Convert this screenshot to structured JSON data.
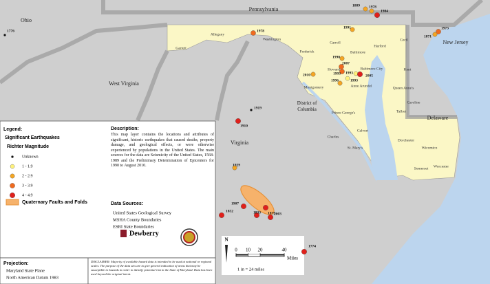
{
  "map": {
    "states": [
      "Ohio",
      "Pennsylvania",
      "West Virginia",
      "New Jersey",
      "Delaware",
      "Virginia",
      "District of Columbia"
    ],
    "counties": [
      "Garrett",
      "Allegany",
      "Washington",
      "Frederick",
      "Carroll",
      "Baltimore",
      "Harford",
      "Cecil",
      "Howard",
      "Baltimore City",
      "Kent",
      "Montgomery",
      "Anne Arundel",
      "Queen Anne's",
      "Prince George's",
      "Talbot",
      "Caroline",
      "Calvert",
      "Charles",
      "Dorchester",
      "St. Mary's",
      "Wicomico",
      "Worcester",
      "Somerset"
    ],
    "earthquakes": [
      "1776",
      "1889",
      "1978",
      "1984",
      "1978",
      "1973",
      "1871",
      "1991",
      "1990",
      "2007",
      "1993",
      "1993",
      "2005",
      "1996",
      "1993",
      "2010",
      "1919",
      "1910",
      "1929",
      "1875",
      "1907",
      "1852",
      "1833",
      "2003",
      "1774"
    ]
  },
  "legend": {
    "title": "Legend:",
    "subtitle": "Significant Earthquakes",
    "magnitude_title": "Richter Magnitude",
    "classes": [
      "Unknown",
      "1 - 1.9",
      "2 - 2.9",
      "3 - 3.9",
      "4 - 4.9"
    ],
    "faults": "Quaternary Faults and Folds"
  },
  "description": {
    "title": "Description:",
    "text": "This map layer contains the locations and attributes of significant, historic earthquakes that caused deaths, property damage, and geological effects, or were otherwise experienced by populations in the United States. The main sources for the data are Seismicity of the United States, 1568-1989 and the Preliminary Determination of Epicenters for 1990 to August 2010."
  },
  "data_sources": {
    "title": "Data Sources:",
    "items": [
      "United States Geological Survey",
      "MSHA County Boundaries",
      "ESRI State Boundaries"
    ]
  },
  "logos": {
    "dewberry": "Dewberry"
  },
  "projection": {
    "title": "Projection:",
    "lines": [
      "Maryland State Plane",
      "North American Datum 1983"
    ]
  },
  "disclaimer": "DISCLAIMER: Majority of available hazard data is intended to be used at national or regional scales. The purpose of the data sets are to give general indication of areas that may be susceptible to hazards in order to identify potential risk in the State of Maryland. Data has been used beyond the original intent.",
  "north": "N",
  "scale": {
    "ticks": [
      0,
      10,
      20,
      40
    ],
    "unit": "Miles",
    "ratio": "1 in = 24 miles"
  }
}
